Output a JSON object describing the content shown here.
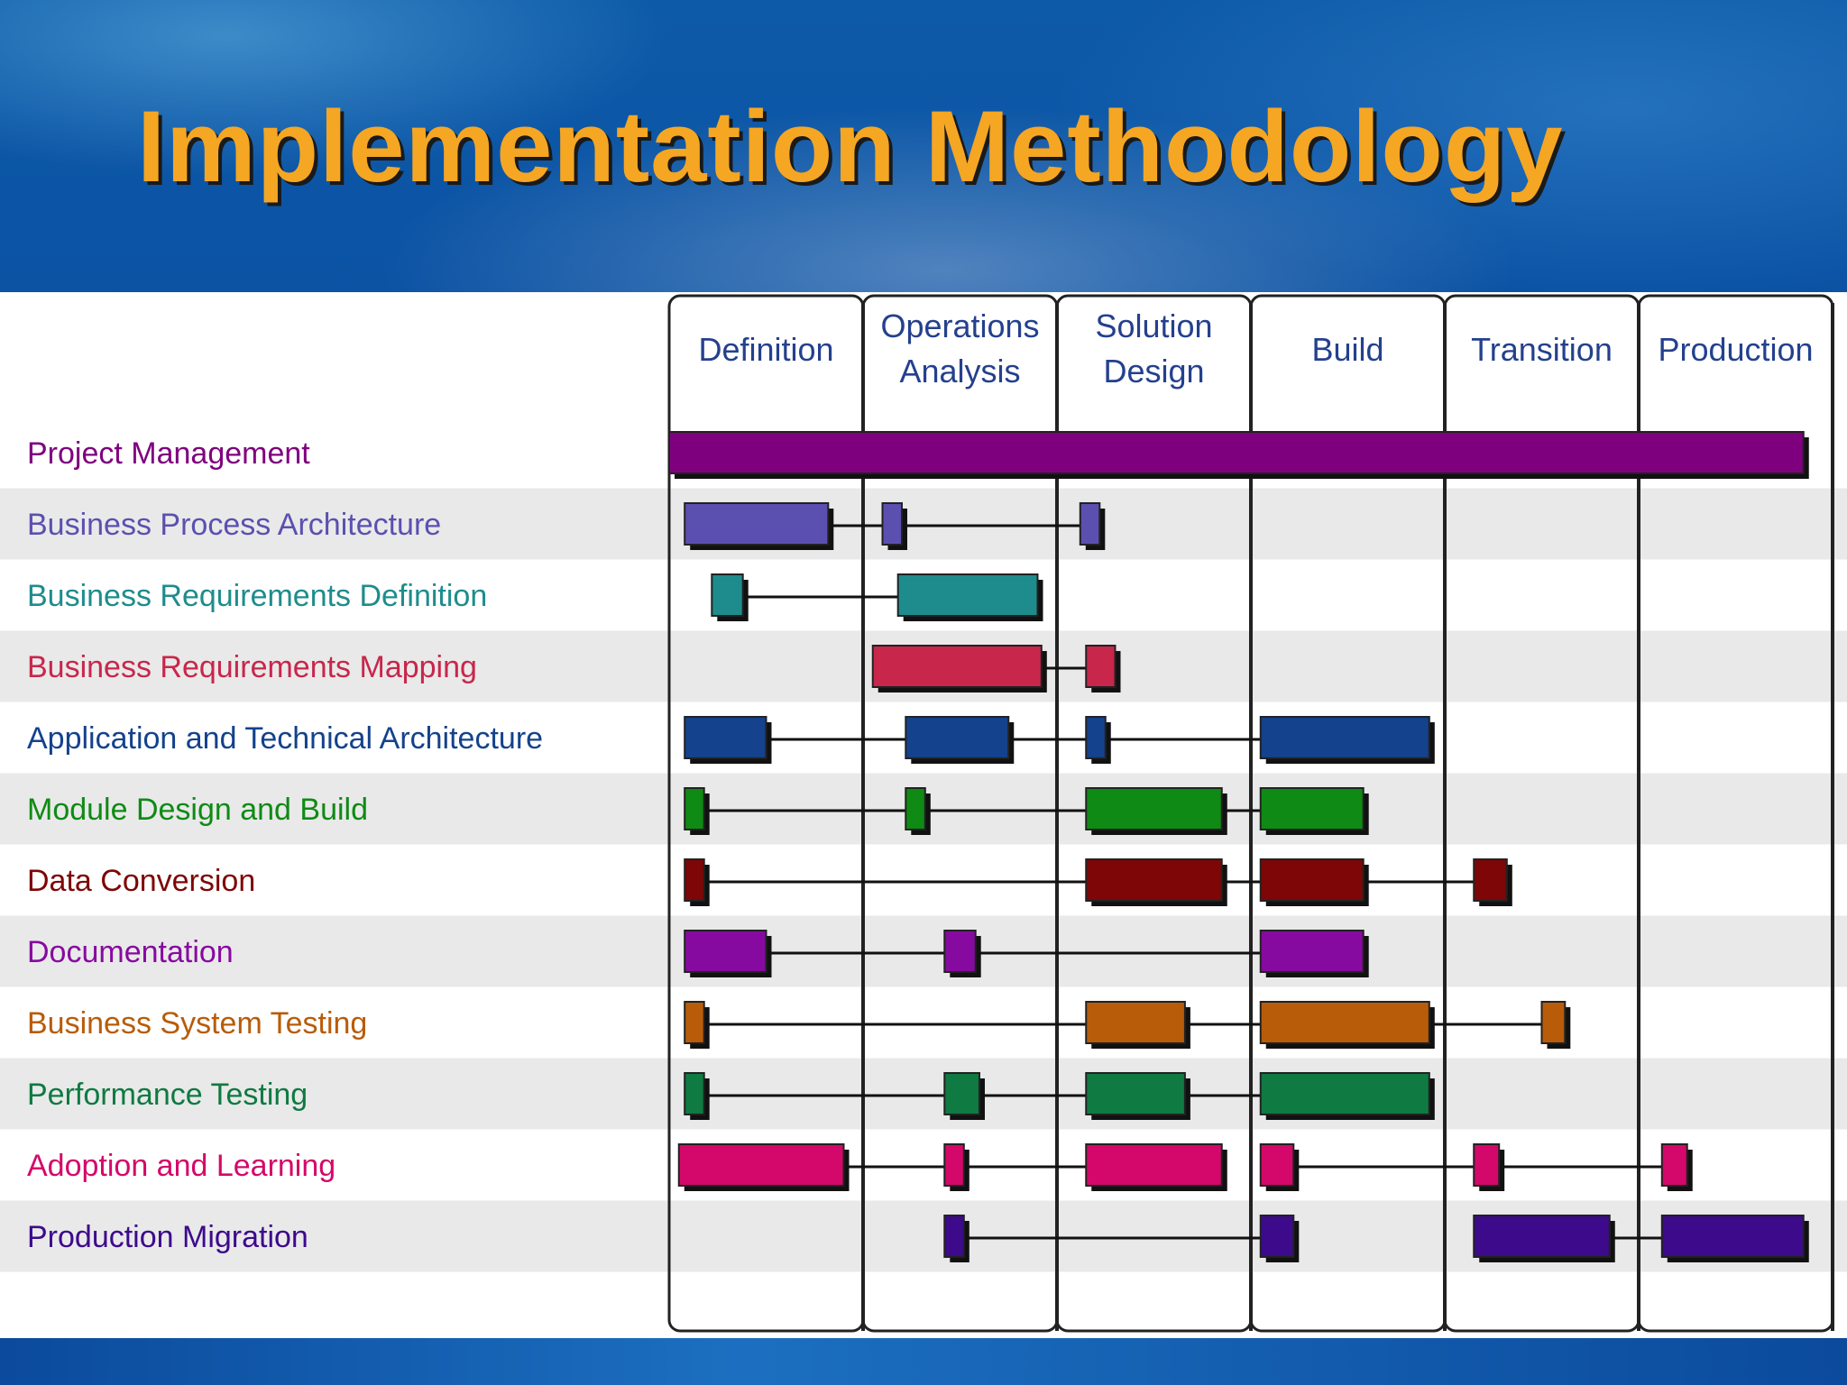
{
  "slide": {
    "title": "Implementation Methodology"
  },
  "phases": [
    "Definition",
    "Operations Analysis",
    "Solution Design",
    "Build",
    "Transition",
    "Production"
  ],
  "rows": [
    {
      "label": "Project Management",
      "color": "#7f007f",
      "bars": [
        [
          0.0,
          5.85
        ]
      ],
      "links": []
    },
    {
      "label": "Business Process Architecture",
      "color": "#5b50b0",
      "bars": [
        [
          0.08,
          0.82
        ],
        [
          1.1,
          1.2
        ],
        [
          2.12,
          2.22
        ]
      ],
      "links": [
        [
          0.82,
          1.1
        ],
        [
          1.2,
          2.12
        ]
      ]
    },
    {
      "label": "Business Requirements Definition",
      "color": "#1e8c8c",
      "bars": [
        [
          0.22,
          0.38
        ],
        [
          1.18,
          1.9
        ]
      ],
      "links": [
        [
          0.38,
          1.18
        ]
      ]
    },
    {
      "label": "Business Requirements Mapping",
      "color": "#c8264b",
      "bars": [
        [
          1.05,
          1.92
        ],
        [
          2.15,
          2.3
        ]
      ],
      "links": [
        [
          1.92,
          2.15
        ]
      ]
    },
    {
      "label": "Application and Technical Architecture",
      "color": "#14428c",
      "bars": [
        [
          0.08,
          0.5
        ],
        [
          1.22,
          1.75
        ],
        [
          2.15,
          2.25
        ],
        [
          3.05,
          3.92
        ]
      ],
      "links": [
        [
          0.5,
          1.22
        ],
        [
          1.75,
          2.15
        ],
        [
          2.25,
          3.05
        ]
      ]
    },
    {
      "label": "Module Design and Build",
      "color": "#0f8a14",
      "bars": [
        [
          0.08,
          0.18
        ],
        [
          1.22,
          1.32
        ],
        [
          2.15,
          2.85
        ],
        [
          3.05,
          3.58
        ]
      ],
      "links": [
        [
          0.18,
          1.22
        ],
        [
          1.32,
          2.15
        ],
        [
          2.85,
          3.05
        ]
      ]
    },
    {
      "label": "Data Conversion",
      "color": "#7e0606",
      "bars": [
        [
          0.08,
          0.18
        ],
        [
          2.15,
          2.85
        ],
        [
          3.05,
          3.58
        ],
        [
          4.15,
          4.32
        ]
      ],
      "links": [
        [
          0.18,
          2.15
        ],
        [
          2.85,
          3.05
        ],
        [
          3.58,
          4.15
        ]
      ]
    },
    {
      "label": "Documentation",
      "color": "#870aa0",
      "bars": [
        [
          0.08,
          0.5
        ],
        [
          1.42,
          1.58
        ],
        [
          3.05,
          3.58
        ]
      ],
      "links": [
        [
          0.5,
          1.42
        ],
        [
          1.58,
          3.05
        ]
      ]
    },
    {
      "label": "Business System Testing",
      "color": "#b85c0a",
      "bars": [
        [
          0.08,
          0.18
        ],
        [
          2.15,
          2.66
        ],
        [
          3.05,
          3.92
        ],
        [
          4.5,
          4.62
        ]
      ],
      "links": [
        [
          0.18,
          2.15
        ],
        [
          2.66,
          3.05
        ],
        [
          3.92,
          4.5
        ]
      ]
    },
    {
      "label": "Performance Testing",
      "color": "#0f7a42",
      "bars": [
        [
          0.08,
          0.18
        ],
        [
          1.42,
          1.6
        ],
        [
          2.15,
          2.66
        ],
        [
          3.05,
          3.92
        ]
      ],
      "links": [
        [
          0.18,
          1.42
        ],
        [
          1.6,
          2.15
        ],
        [
          2.66,
          3.05
        ]
      ]
    },
    {
      "label": "Adoption and Learning",
      "color": "#d4086a",
      "bars": [
        [
          0.05,
          0.9
        ],
        [
          1.42,
          1.52
        ],
        [
          2.15,
          2.85
        ],
        [
          3.05,
          3.22
        ],
        [
          4.15,
          4.28
        ],
        [
          5.12,
          5.25
        ]
      ],
      "links": [
        [
          0.9,
          1.42
        ],
        [
          1.52,
          2.15
        ],
        [
          3.22,
          4.15
        ],
        [
          4.28,
          5.12
        ]
      ]
    },
    {
      "label": "Production Migration",
      "color": "#3d0a8c",
      "bars": [
        [
          1.42,
          1.52
        ],
        [
          3.05,
          3.22
        ],
        [
          4.15,
          4.85
        ],
        [
          5.12,
          5.85
        ]
      ],
      "links": [
        [
          1.52,
          3.05
        ],
        [
          4.85,
          5.12
        ]
      ]
    }
  ]
}
